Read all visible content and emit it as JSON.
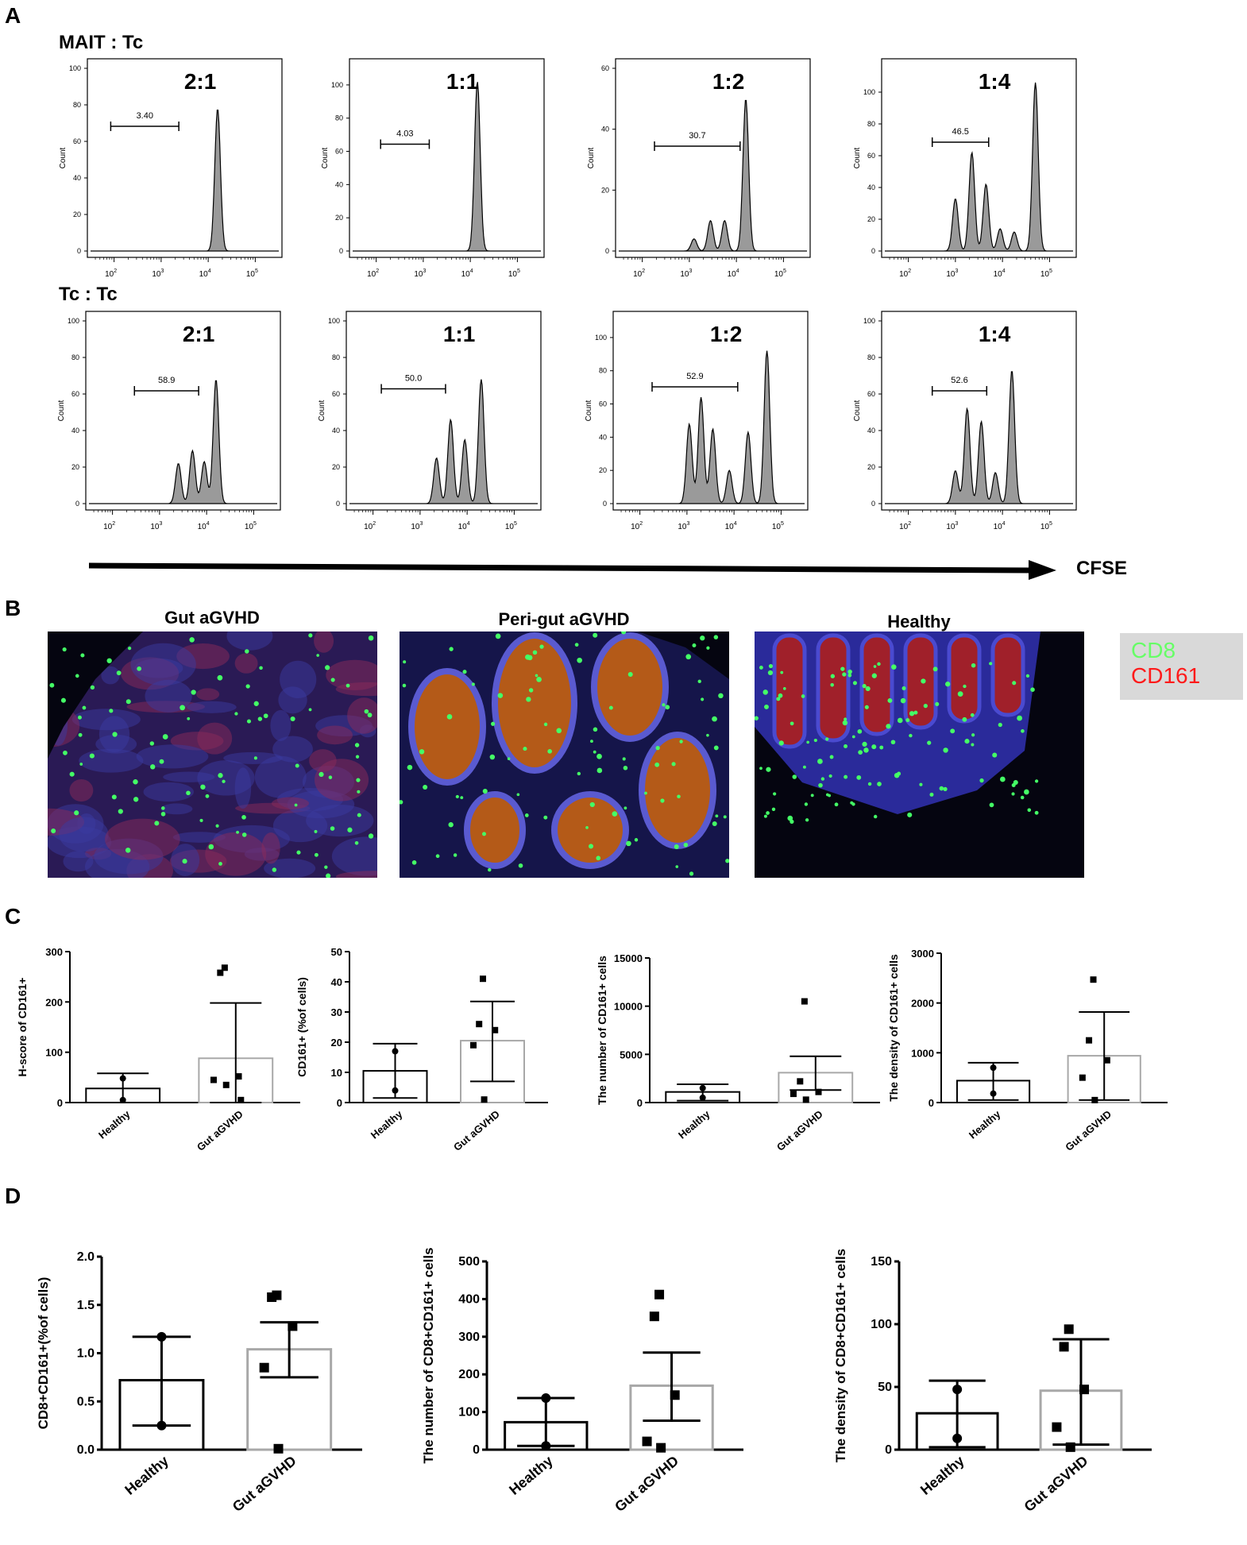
{
  "panels": {
    "A": "A",
    "B": "B",
    "C": "C",
    "D": "D"
  },
  "panel_a": {
    "row_labels": [
      "MAIT : Tc",
      "Tc : Tc"
    ],
    "cfse_label": "CFSE",
    "y_label": "Count"
  },
  "panel_b": {
    "titles": [
      "Gut aGVHD",
      "Peri-gut aGVHD",
      "Healthy"
    ],
    "legend": [
      "CD8",
      "CD161"
    ],
    "legend_colors": [
      "#66ff66",
      "#ff1a1a"
    ]
  },
  "chart_data": [
    {
      "type": "histogram",
      "row": "MAIT : Tc",
      "ratio": "2:1",
      "gate_value": "3.40",
      "ylabel": "Count",
      "ylim": [
        0,
        100
      ],
      "yticks": [
        0,
        20,
        40,
        60,
        80,
        100
      ],
      "x_log_range": [
        1.5,
        5.5
      ],
      "peaks": [
        [
          4.2,
          78
        ]
      ]
    },
    {
      "type": "histogram",
      "row": "MAIT : Tc",
      "ratio": "1:1",
      "gate_value": "4.03",
      "ylabel": "Count",
      "ylim": [
        0,
        110
      ],
      "yticks": [
        0,
        20,
        40,
        60,
        80,
        100
      ],
      "x_log_range": [
        1.5,
        5.5
      ],
      "peaks": [
        [
          4.15,
          102
        ]
      ]
    },
    {
      "type": "histogram",
      "row": "MAIT : Tc",
      "ratio": "1:2",
      "gate_value": "30.7",
      "ylabel": "Count",
      "ylim": [
        0,
        60
      ],
      "yticks": [
        0,
        20,
        40,
        60
      ],
      "x_log_range": [
        1.5,
        5.5
      ],
      "peaks": [
        [
          3.1,
          4
        ],
        [
          3.45,
          10
        ],
        [
          3.75,
          10
        ],
        [
          4.2,
          50
        ]
      ]
    },
    {
      "type": "histogram",
      "row": "MAIT : Tc",
      "ratio": "1:4",
      "gate_value": "46.5",
      "ylabel": "Count",
      "ylim": [
        0,
        115
      ],
      "yticks": [
        0,
        20,
        40,
        60,
        80,
        100
      ],
      "x_log_range": [
        1.5,
        5.5
      ],
      "peaks": [
        [
          3.0,
          33
        ],
        [
          3.35,
          62
        ],
        [
          3.65,
          42
        ],
        [
          3.95,
          14
        ],
        [
          4.25,
          12
        ],
        [
          4.7,
          106
        ]
      ]
    },
    {
      "type": "histogram",
      "row": "Tc : Tc",
      "ratio": "2:1",
      "gate_value": "58.9",
      "ylabel": "Count",
      "ylim": [
        0,
        100
      ],
      "yticks": [
        0,
        20,
        40,
        60,
        80,
        100
      ],
      "x_log_range": [
        1.5,
        5.5
      ],
      "peaks": [
        [
          3.4,
          22
        ],
        [
          3.7,
          29
        ],
        [
          3.95,
          23
        ],
        [
          4.2,
          68
        ]
      ]
    },
    {
      "type": "histogram",
      "row": "Tc : Tc",
      "ratio": "1:1",
      "gate_value": "50.0",
      "ylabel": "Count",
      "ylim": [
        0,
        100
      ],
      "yticks": [
        0,
        20,
        40,
        60,
        80,
        100
      ],
      "x_log_range": [
        1.5,
        5.5
      ],
      "peaks": [
        [
          3.35,
          25
        ],
        [
          3.65,
          46
        ],
        [
          3.95,
          35
        ],
        [
          4.3,
          68
        ]
      ]
    },
    {
      "type": "histogram",
      "row": "Tc : Tc",
      "ratio": "1:2",
      "gate_value": "52.9",
      "ylabel": "Count",
      "ylim": [
        0,
        110
      ],
      "yticks": [
        0,
        20,
        40,
        60,
        80,
        100
      ],
      "x_log_range": [
        1.5,
        5.5
      ],
      "peaks": [
        [
          3.05,
          48
        ],
        [
          3.3,
          64
        ],
        [
          3.55,
          45
        ],
        [
          3.9,
          20
        ],
        [
          4.3,
          43
        ],
        [
          4.7,
          92
        ]
      ]
    },
    {
      "type": "histogram",
      "row": "Tc : Tc",
      "ratio": "1:4",
      "gate_value": "52.6",
      "ylabel": "Count",
      "ylim": [
        0,
        100
      ],
      "yticks": [
        0,
        20,
        40,
        60,
        80,
        100
      ],
      "x_log_range": [
        1.5,
        5.5
      ],
      "peaks": [
        [
          3.0,
          18
        ],
        [
          3.25,
          52
        ],
        [
          3.55,
          45
        ],
        [
          3.85,
          17
        ],
        [
          4.2,
          73
        ]
      ]
    },
    {
      "type": "bar",
      "panel": "C",
      "ylabel": "H-score of CD161+",
      "ylim": [
        0,
        300
      ],
      "yticks": [
        0,
        100,
        200,
        300
      ],
      "categories": [
        "Healthy",
        "Gut aGVHD"
      ],
      "values": [
        28,
        88
      ],
      "error": [
        [
          0,
          58
        ],
        [
          0,
          198
        ]
      ],
      "points": [
        [
          0,
          48
        ],
        [
          0,
          5
        ]
      ],
      "points2": [
        [
          0,
          268
        ],
        [
          0,
          258
        ],
        [
          0,
          52
        ],
        [
          0,
          45
        ],
        [
          0,
          35
        ],
        [
          0,
          5
        ]
      ]
    },
    {
      "type": "bar",
      "panel": "C",
      "ylabel": "CD161+ (%of  cells)",
      "ylim": [
        0,
        50
      ],
      "yticks": [
        0,
        10,
        20,
        30,
        40,
        50
      ],
      "categories": [
        "Healthy",
        "Gut aGVHD"
      ],
      "values": [
        10.5,
        20.5
      ],
      "error": [
        [
          1.5,
          19.5
        ],
        [
          7,
          33.5
        ]
      ],
      "points": [
        [
          0,
          17
        ],
        [
          0,
          4
        ]
      ],
      "points2": [
        [
          0,
          41
        ],
        [
          0,
          26
        ],
        [
          0,
          24
        ],
        [
          0,
          19
        ],
        [
          0,
          1
        ]
      ]
    },
    {
      "type": "bar",
      "panel": "C",
      "ylabel": "The number of CD161+ cells",
      "ylim": [
        0,
        15000
      ],
      "yticks": [
        0,
        5000,
        10000,
        15000
      ],
      "categories": [
        "Healthy",
        "Gut aGVHD"
      ],
      "values": [
        1100,
        3100
      ],
      "error": [
        [
          200,
          1900
        ],
        [
          1300,
          4800
        ]
      ],
      "points": [
        [
          0,
          1500
        ],
        [
          0,
          500
        ]
      ],
      "points2": [
        [
          0,
          10500
        ],
        [
          0,
          2200
        ],
        [
          0,
          1100
        ],
        [
          0,
          900
        ],
        [
          0,
          300
        ]
      ]
    },
    {
      "type": "bar",
      "panel": "C",
      "ylabel": "The density of CD161+ cells",
      "ylim": [
        0,
        3000
      ],
      "yticks": [
        0,
        1000,
        2000,
        3000
      ],
      "categories": [
        "Healthy",
        "Gut aGVHD"
      ],
      "values": [
        440,
        940
      ],
      "error": [
        [
          50,
          800
        ],
        [
          50,
          1820
        ]
      ],
      "points": [
        [
          0,
          700
        ],
        [
          0,
          180
        ]
      ],
      "points2": [
        [
          0,
          2470
        ],
        [
          0,
          1250
        ],
        [
          0,
          850
        ],
        [
          0,
          500
        ],
        [
          0,
          50
        ]
      ]
    },
    {
      "type": "bar",
      "panel": "D",
      "ylabel": "CD8+CD161+(%of  cells)",
      "ylim": [
        0,
        2.0
      ],
      "yticks": [
        "0.0",
        "0.5",
        "1.0",
        "1.5",
        "2.0"
      ],
      "categories": [
        "Healthy",
        "Gut aGVHD"
      ],
      "values": [
        0.72,
        1.04
      ],
      "error": [
        [
          0.25,
          1.17
        ],
        [
          0.75,
          1.32
        ]
      ],
      "points": [
        [
          0,
          1.17
        ],
        [
          0,
          0.25
        ]
      ],
      "points2": [
        [
          0,
          1.6
        ],
        [
          0,
          1.58
        ],
        [
          0,
          1.28
        ],
        [
          0,
          0.85
        ],
        [
          0,
          0.01
        ]
      ]
    },
    {
      "type": "bar",
      "panel": "D",
      "ylabel": "The number of CD8+CD161+ cells",
      "ylim": [
        0,
        500
      ],
      "yticks": [
        0,
        100,
        200,
        300,
        400,
        500
      ],
      "categories": [
        "Healthy",
        "Gut aGVHD"
      ],
      "values": [
        73,
        170
      ],
      "error": [
        [
          10,
          137
        ],
        [
          77,
          258
        ]
      ],
      "points": [
        [
          0,
          137
        ],
        [
          0,
          10
        ]
      ],
      "points2": [
        [
          0,
          412
        ],
        [
          0,
          354
        ],
        [
          0,
          145
        ],
        [
          0,
          22
        ],
        [
          0,
          5
        ]
      ]
    },
    {
      "type": "bar",
      "panel": "D",
      "ylabel": "The density of CD8+CD161+ cells",
      "ylim": [
        0,
        150
      ],
      "yticks": [
        0,
        50,
        100,
        150
      ],
      "categories": [
        "Healthy",
        "Gut aGVHD"
      ],
      "values": [
        29,
        47
      ],
      "error": [
        [
          2,
          55
        ],
        [
          4,
          88
        ]
      ],
      "points": [
        [
          0,
          48
        ],
        [
          0,
          9
        ]
      ],
      "points2": [
        [
          0,
          96
        ],
        [
          0,
          82
        ],
        [
          0,
          48
        ],
        [
          0,
          18
        ],
        [
          0,
          2
        ]
      ]
    }
  ]
}
